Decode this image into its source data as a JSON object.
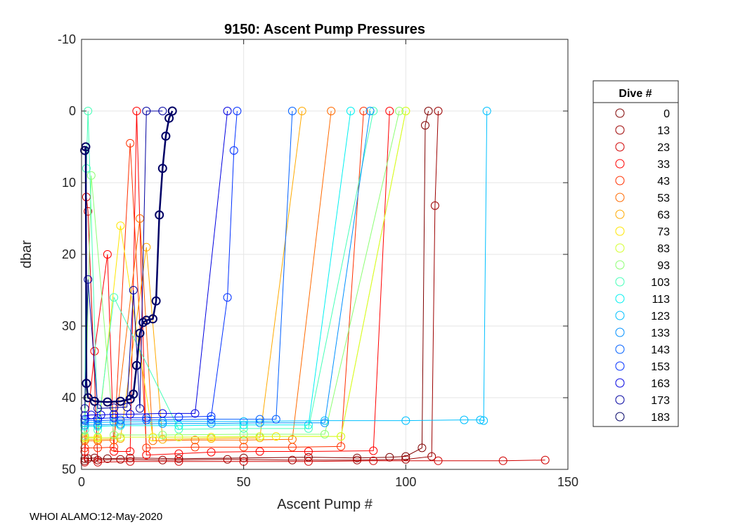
{
  "chart_data": {
    "type": "line",
    "title": "9150: Ascent Pump Pressures",
    "xlabel": "Ascent Pump #",
    "ylabel": "dbar",
    "xlim": [
      0,
      150
    ],
    "ylim": [
      -10,
      50
    ],
    "y_reversed": true,
    "grid": true,
    "xticks": [
      0,
      50,
      100,
      150
    ],
    "yticks": [
      -10,
      0,
      10,
      20,
      30,
      40,
      50
    ],
    "legend_title": "Dive #",
    "legend_position": "outside-right",
    "marker": "open-circle",
    "series": [
      {
        "name": "0",
        "color": "#7f0000",
        "x": [
          1,
          2,
          4,
          8,
          15,
          30,
          50,
          70,
          85,
          95,
          100,
          105,
          106,
          107
        ],
        "y": [
          48.5,
          48.5,
          48.4,
          48.5,
          48.4,
          48.5,
          48.4,
          48.3,
          48.4,
          48.3,
          48.2,
          47.0,
          2.0,
          0
        ]
      },
      {
        "name": "13",
        "color": "#9c0000",
        "x": [
          1,
          5,
          12,
          25,
          45,
          65,
          85,
          100,
          108,
          109,
          110
        ],
        "y": [
          48.8,
          48.7,
          48.6,
          48.7,
          48.6,
          48.7,
          48.7,
          48.6,
          48.2,
          13.2,
          0
        ]
      },
      {
        "name": "23",
        "color": "#d00000",
        "x": [
          1,
          1.5,
          2,
          5,
          15,
          30,
          50,
          70,
          90,
          110,
          130,
          143
        ],
        "y": [
          49.0,
          12.0,
          14.0,
          49.0,
          48.9,
          48.9,
          48.9,
          48.9,
          48.8,
          48.8,
          48.8,
          48.7
        ]
      },
      {
        "name": "33",
        "color": "#ff0000",
        "x": [
          1,
          4,
          8,
          10,
          15,
          17,
          20,
          30,
          40,
          55,
          70,
          90,
          95
        ],
        "y": [
          47.5,
          33.5,
          20.0,
          47.5,
          47.5,
          0,
          48.0,
          47.8,
          47.6,
          47.5,
          47.5,
          47.4,
          0
        ]
      },
      {
        "name": "43",
        "color": "#ff3000",
        "x": [
          1,
          5,
          10,
          15,
          20,
          35,
          50,
          65,
          80,
          87
        ],
        "y": [
          47.0,
          47.0,
          46.9,
          4.5,
          47.0,
          46.9,
          46.9,
          46.9,
          46.8,
          0
        ]
      },
      {
        "name": "53",
        "color": "#ff6a00",
        "x": [
          1,
          5,
          10,
          18,
          22,
          35,
          50,
          65,
          77
        ],
        "y": [
          46.0,
          46.0,
          45.9,
          15.0,
          46.0,
          45.9,
          45.9,
          45.8,
          0
        ]
      },
      {
        "name": "63",
        "color": "#ffaa00",
        "x": [
          1,
          5,
          12,
          20,
          25,
          40,
          55,
          68
        ],
        "y": [
          45.8,
          45.8,
          45.7,
          19.0,
          45.8,
          45.7,
          45.6,
          0
        ]
      },
      {
        "name": "73",
        "color": "#ffe600",
        "x": [
          1,
          5,
          12,
          22,
          40,
          60,
          80,
          100
        ],
        "y": [
          45.5,
          45.5,
          16.0,
          45.5,
          45.5,
          45.4,
          45.4,
          0
        ]
      },
      {
        "name": "83",
        "color": "#d4ff2b",
        "x": [
          1,
          5,
          12,
          30,
          55,
          80,
          100
        ],
        "y": [
          45.6,
          45.6,
          45.5,
          45.5,
          45.4,
          45.4,
          0
        ]
      },
      {
        "name": "93",
        "color": "#8cff73",
        "x": [
          1,
          3,
          10,
          25,
          50,
          75,
          98
        ],
        "y": [
          45.3,
          9.0,
          45.2,
          45.2,
          45.1,
          45.1,
          0
        ]
      },
      {
        "name": "103",
        "color": "#45ffb8",
        "x": [
          1,
          1.5,
          2,
          5,
          10,
          30,
          50,
          70,
          90
        ],
        "y": [
          44.5,
          8.0,
          0,
          44.5,
          26.0,
          44.4,
          44.3,
          44.3,
          0
        ]
      },
      {
        "name": "113",
        "color": "#00f0f0",
        "x": [
          1,
          5,
          12,
          30,
          50,
          70,
          83
        ],
        "y": [
          44.0,
          44.0,
          43.9,
          43.9,
          43.8,
          43.8,
          0
        ]
      },
      {
        "name": "123",
        "color": "#00c0ff",
        "x": [
          1,
          10,
          25,
          50,
          75,
          100,
          118,
          123,
          124,
          125
        ],
        "y": [
          43.5,
          43.4,
          43.3,
          43.3,
          43.2,
          43.2,
          43.1,
          43.1,
          43.2,
          0
        ]
      },
      {
        "name": "133",
        "color": "#0090ff",
        "x": [
          1,
          5,
          12,
          25,
          40,
          55,
          75,
          89
        ],
        "y": [
          43.8,
          43.8,
          43.7,
          43.6,
          43.6,
          43.5,
          43.5,
          0
        ]
      },
      {
        "name": "143",
        "color": "#0060ff",
        "x": [
          1,
          5,
          12,
          20,
          40,
          55,
          60,
          65
        ],
        "y": [
          43.2,
          43.2,
          43.1,
          43.1,
          43.0,
          43.0,
          43.0,
          0
        ]
      },
      {
        "name": "153",
        "color": "#0030ff",
        "x": [
          1,
          5,
          10,
          20,
          30,
          40,
          45,
          47,
          48
        ],
        "y": [
          43.0,
          42.9,
          42.8,
          42.8,
          42.7,
          42.6,
          26.0,
          5.5,
          0
        ]
      },
      {
        "name": "163",
        "color": "#0000e0",
        "x": [
          1,
          3,
          6,
          10,
          15,
          25,
          35,
          45
        ],
        "y": [
          42.5,
          42.4,
          42.4,
          42.3,
          42.3,
          42.2,
          42.2,
          0
        ]
      },
      {
        "name": "173",
        "color": "#0000a0",
        "x": [
          1,
          2,
          5,
          10,
          14,
          16,
          18,
          20,
          25
        ],
        "y": [
          41.5,
          23.5,
          41.5,
          41.4,
          41.3,
          25.0,
          41.5,
          0,
          0
        ]
      },
      {
        "name": "183",
        "color": "#000066",
        "x": [
          1,
          1.3,
          1.5,
          2,
          4,
          8,
          12,
          15,
          16,
          17,
          18,
          19,
          20,
          22,
          23,
          24,
          25,
          26,
          27,
          28
        ],
        "y": [
          5.5,
          5.0,
          38.0,
          40.0,
          40.5,
          40.6,
          40.5,
          40.2,
          39.5,
          35.5,
          31.0,
          29.5,
          29.2,
          29.0,
          26.5,
          14.5,
          8.0,
          3.5,
          1.0,
          0
        ]
      }
    ]
  },
  "footer_text": "WHOI ALAMO:12-May-2020"
}
